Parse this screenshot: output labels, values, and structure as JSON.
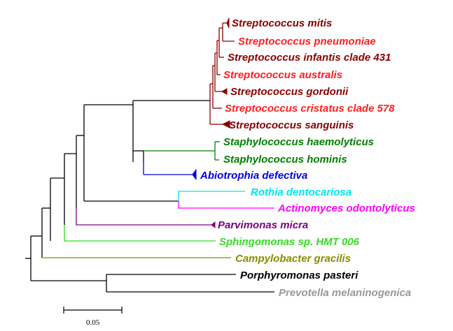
{
  "taxa": [
    {
      "label": "Streptococcus mitis",
      "color": "#8b0000"
    },
    {
      "label": "Streptococcus pneumoniae",
      "color": "#ff2020"
    },
    {
      "label": "Streptococcus infantis clade 431",
      "color": "#8b0000"
    },
    {
      "label": "Streptococcus australis",
      "color": "#ff2020"
    },
    {
      "label": "Streptococcus gordonii",
      "color": "#8b0000"
    },
    {
      "label": "Streptococcus cristatus clade 578",
      "color": "#ff2020"
    },
    {
      "label": "Streptococcus sanguinis",
      "color": "#8b0000"
    },
    {
      "label": "Staphylococcus haemolyticus",
      "color": "#008000"
    },
    {
      "label": "Staphylococcus hominis",
      "color": "#008000"
    },
    {
      "label": "Abiotrophia defectiva",
      "color": "#0000e0"
    },
    {
      "label": "Rothia dentocariosa",
      "color": "#00e5ee"
    },
    {
      "label": "Actinomyces odontolyticus",
      "color": "#ff00ff"
    },
    {
      "label": "Parvimonas micra",
      "color": "#800080"
    },
    {
      "label": "Sphingomonas sp. HMT 006",
      "color": "#33dd22"
    },
    {
      "label": "Campylobacter gracilis",
      "color": "#8b8b00"
    },
    {
      "label": "Porphyromonas pasteri",
      "color": "#000000"
    },
    {
      "label": "Prevotella melaninogenica",
      "color": "#999999"
    }
  ],
  "scale_bar": {
    "label": "0.05"
  }
}
